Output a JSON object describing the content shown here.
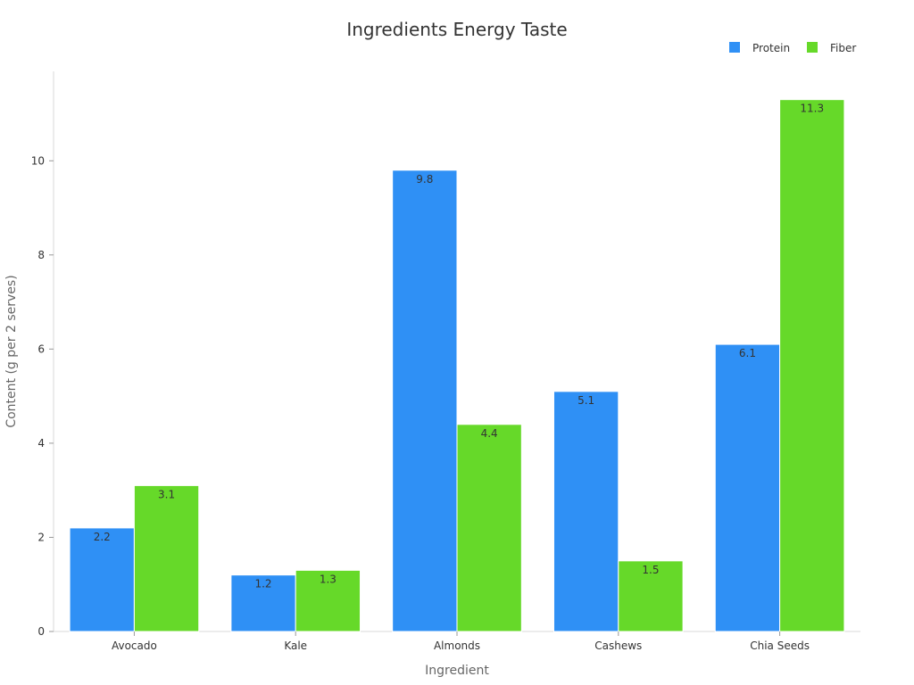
{
  "chart_data": {
    "type": "bar",
    "title": "Ingredients Energy Taste",
    "xlabel": "Ingredient",
    "ylabel": "Content (g per 2 serves)",
    "categories": [
      "Avocado",
      "Kale",
      "Almonds",
      "Cashews",
      "Chia Seeds"
    ],
    "series": [
      {
        "name": "Protein",
        "color": "#2f90f5",
        "values": [
          2.2,
          1.2,
          9.8,
          5.1,
          6.1
        ]
      },
      {
        "name": "Fiber",
        "color": "#66d929",
        "values": [
          3.1,
          1.3,
          4.4,
          1.5,
          11.3
        ]
      }
    ],
    "ylim": [
      0,
      11.9
    ],
    "yticks": [
      0,
      2,
      4,
      6,
      8,
      10
    ],
    "grid": false,
    "legend_position": "top-right"
  }
}
